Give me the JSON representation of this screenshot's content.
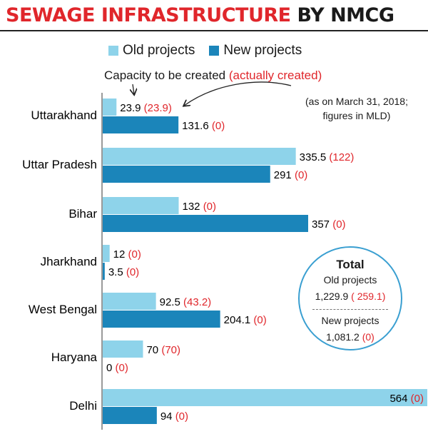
{
  "title": {
    "part1": "SEWAGE INFRASTRUCTURE",
    "part2": "BY NMCG"
  },
  "colors": {
    "old_bar": "#8ed3ea",
    "new_bar": "#1b85ba",
    "accent_red": "#e0262b",
    "circle_border": "#3a9fd1"
  },
  "legend": {
    "old": "Old projects",
    "new": "New projects"
  },
  "caption": {
    "main": "Capacity to be created",
    "paren": "(actually created)"
  },
  "note": {
    "line1": "(as on March 31, 2018;",
    "line2": "figures in MLD)"
  },
  "chart_data": {
    "type": "bar",
    "orientation": "horizontal",
    "categories": [
      "Uttarakhand",
      "Uttar Pradesh",
      "Bihar",
      "Jharkhand",
      "West Bengal",
      "Haryana",
      "Delhi"
    ],
    "series": [
      {
        "name": "Old projects",
        "values": [
          23.9,
          335.5,
          132,
          12,
          92.5,
          70,
          564
        ],
        "labels": [
          "23.9",
          "335.5",
          "132",
          "12",
          "92.5",
          "70",
          "564"
        ],
        "actual_labels": [
          "(23.9)",
          "(122)",
          "(0)",
          "(0)",
          "(43.2)",
          "(70)",
          "(0)"
        ]
      },
      {
        "name": "New projects",
        "values": [
          131.6,
          291,
          357,
          3.5,
          204.1,
          0,
          94
        ],
        "labels": [
          "131.6",
          "291",
          "357",
          "3.5",
          "204.1",
          "0",
          "94"
        ],
        "actual_labels": [
          "(0)",
          "(0)",
          "(0)",
          "(0)",
          "(0)",
          "(0)",
          "(0)"
        ]
      }
    ],
    "xlim": [
      0,
      564
    ],
    "grid": false,
    "legend_position": "top"
  },
  "total": {
    "title": "Total",
    "old_label": "Old projects",
    "old_value": "1,229.9",
    "old_actual": "( 259.1)",
    "new_label": "New projects",
    "new_value": "1,081.2",
    "new_actual": "(0)"
  }
}
